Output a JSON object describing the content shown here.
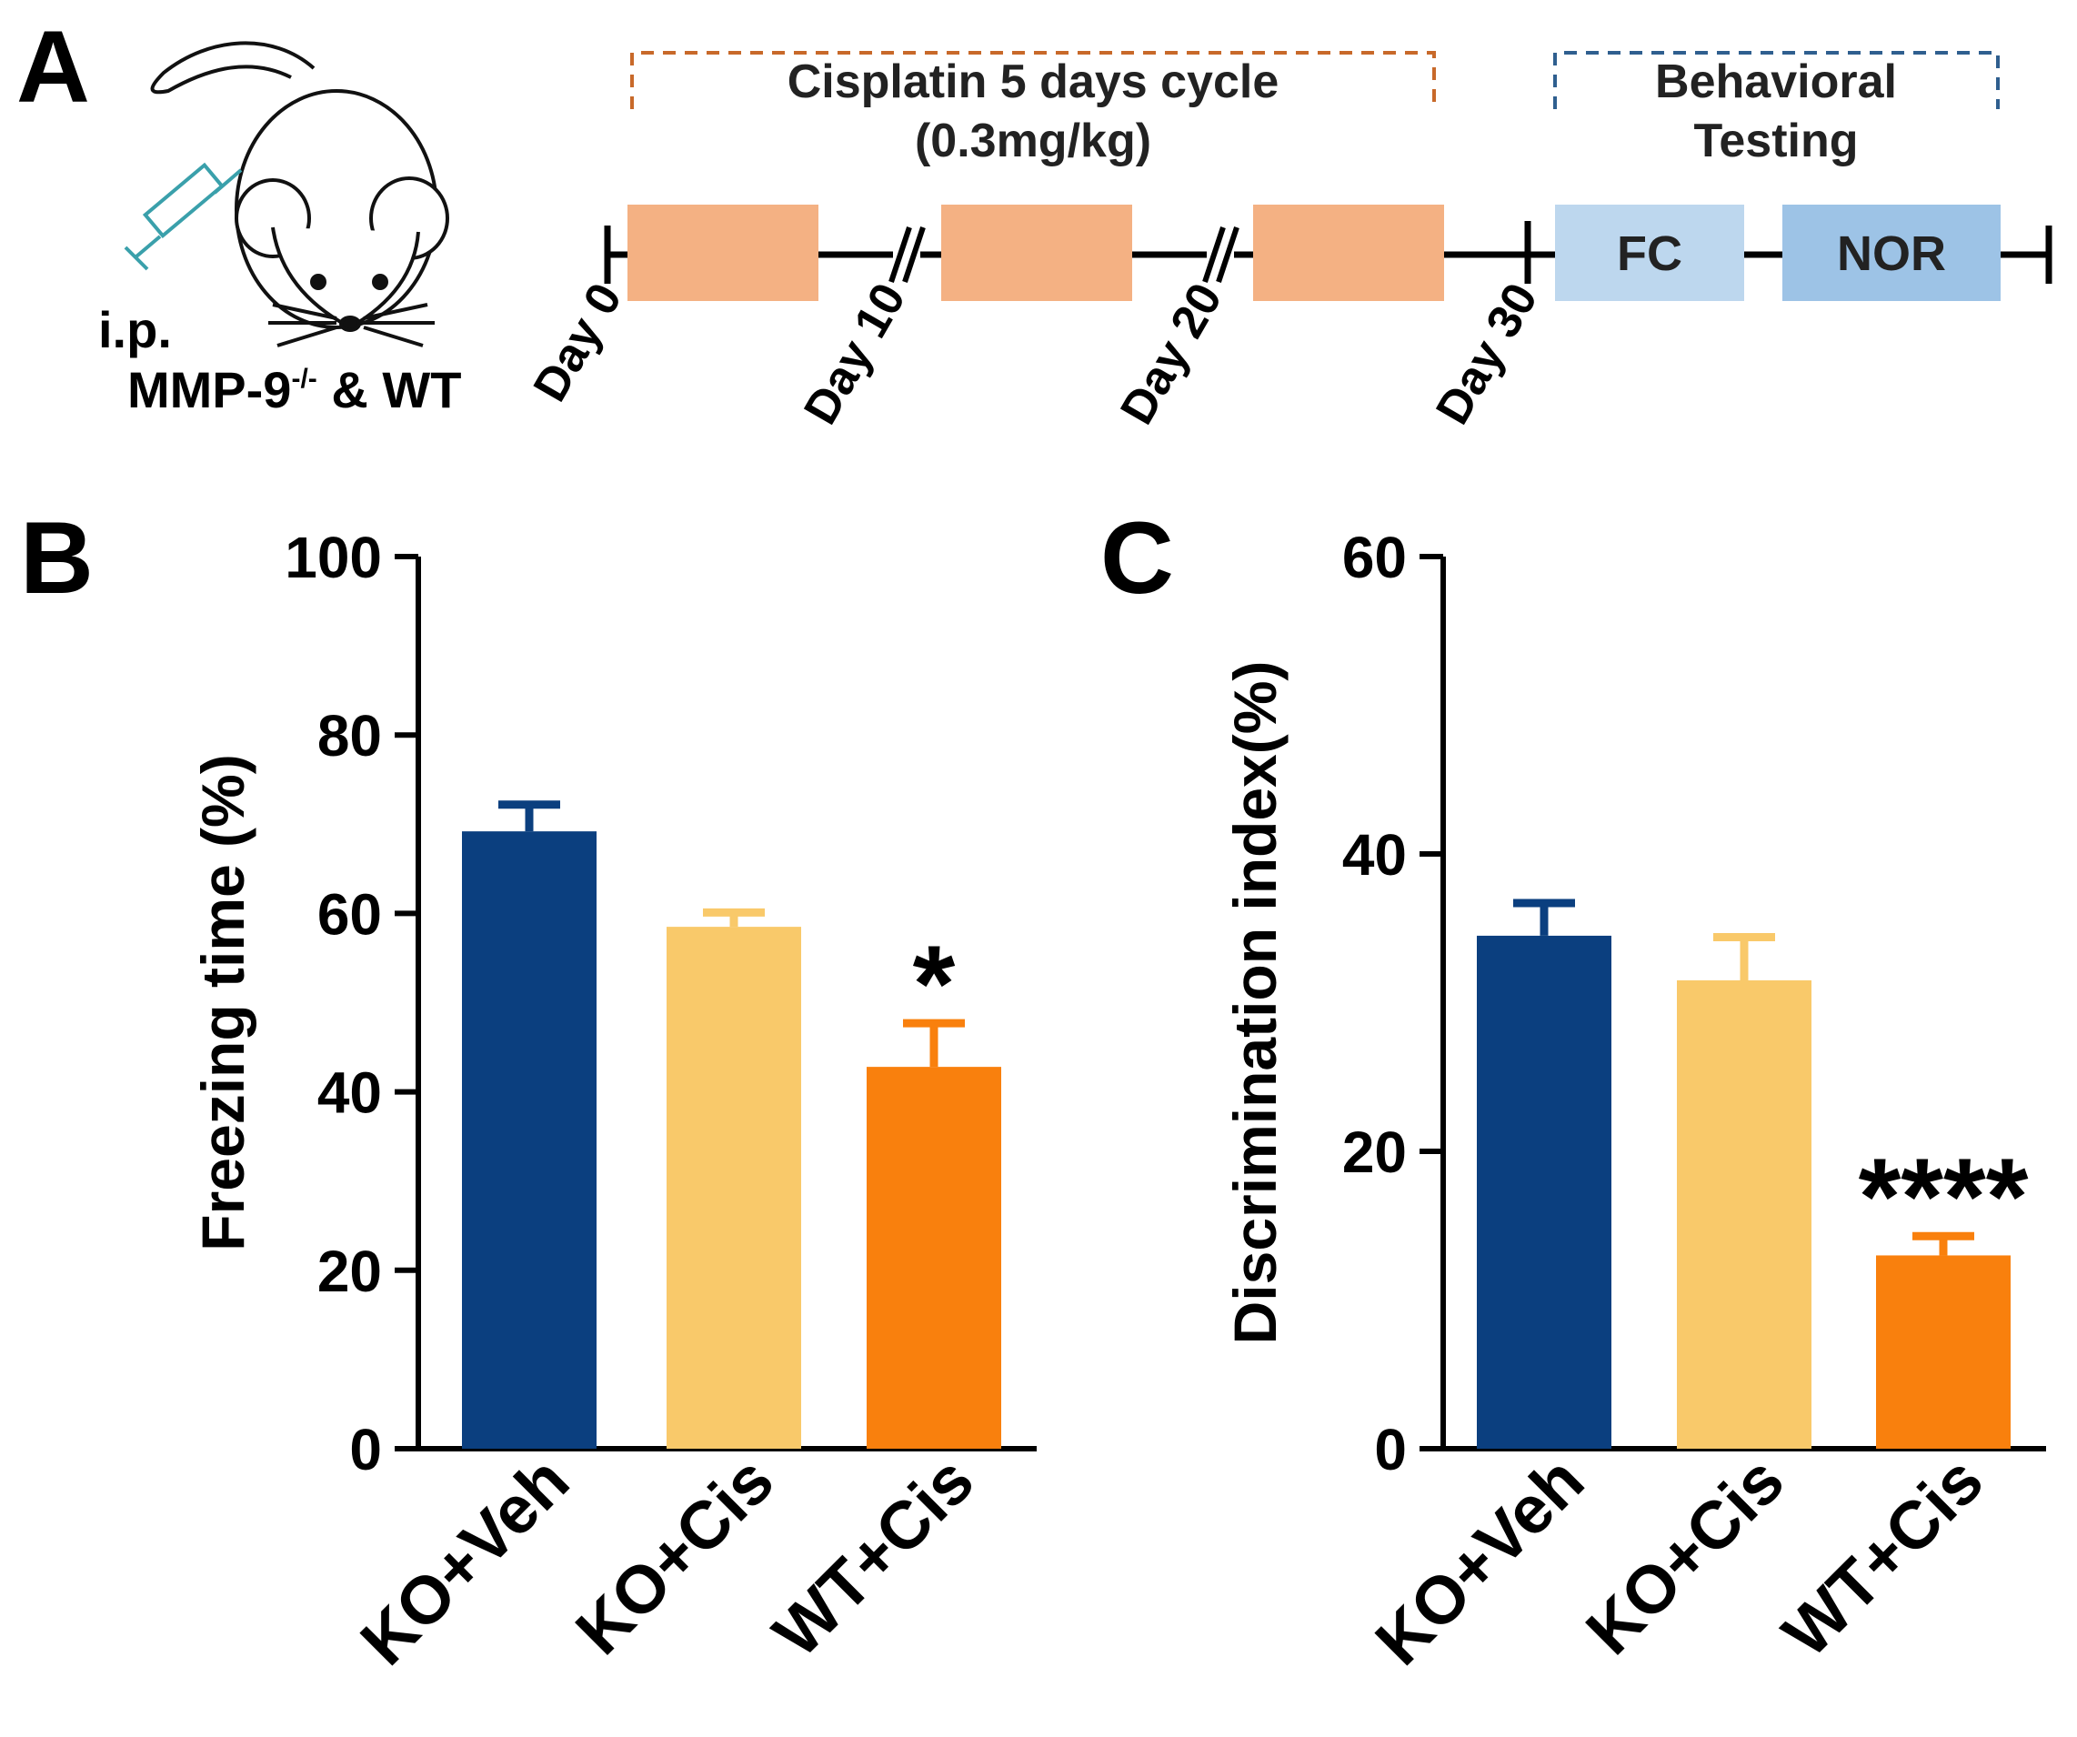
{
  "panel_a": {
    "letter": "A",
    "mouse": {
      "route_label": "i.p.",
      "strain_base": "MMP-9",
      "strain_superscript": "-/-",
      "strain_suffix": " & WT"
    },
    "cisplatin_box": {
      "line1": "Cisplatin 5 days cycle",
      "line2": "(0.3mg/kg)",
      "dash_color": "#c8692a"
    },
    "behavior_box": {
      "line1": "Behavioral",
      "line2": "Testing",
      "dash_color": "#2f5f8f"
    },
    "days": [
      "Day 0",
      "Day 10",
      "Day 20",
      "Day 30"
    ],
    "blocks": [
      {
        "label": "FC",
        "color": "#bdd7ee"
      },
      {
        "label": "NOR",
        "color": "#9dc3e6"
      }
    ],
    "cisplatin_block_color": "#f4b183"
  },
  "colors": {
    "ko_veh": "#0b3f7f",
    "ko_cis": "#f9c96a",
    "wt_cis": "#f9800d",
    "syringe": "#3aa0ab"
  },
  "chart_data": [
    {
      "panel": "B",
      "type": "bar",
      "categories": [
        "KO+Veh",
        "KO+Cis",
        "WT+Cis"
      ],
      "values": [
        69.2,
        58.5,
        42.8
      ],
      "errors": [
        3.0,
        1.6,
        4.9
      ],
      "significance": [
        "",
        "",
        "*"
      ],
      "ylabel": "Freezing time (%)",
      "ylim": [
        0,
        100
      ],
      "yticks": [
        0,
        20,
        40,
        60,
        80,
        100
      ]
    },
    {
      "panel": "C",
      "type": "bar",
      "categories": [
        "KO+Veh",
        "KO+Cis",
        "WT+Cis"
      ],
      "values": [
        34.5,
        31.5,
        13.0
      ],
      "errors": [
        2.2,
        2.9,
        1.3
      ],
      "significance": [
        "",
        "",
        "****"
      ],
      "ylabel": "Discrimination index(%)",
      "ylim": [
        0,
        60
      ],
      "yticks": [
        0,
        20,
        40,
        60
      ]
    }
  ]
}
